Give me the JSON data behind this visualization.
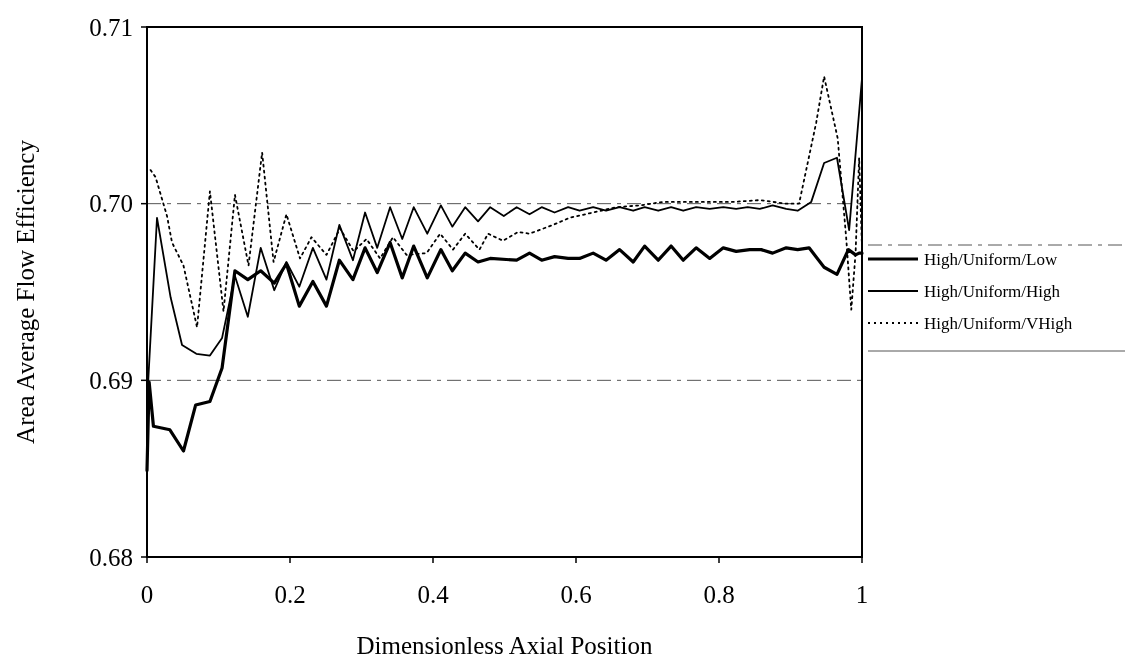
{
  "chart_data": {
    "type": "line",
    "xlabel": "Dimensionless Axial Position",
    "ylabel": "Area Average Flow Efficiency",
    "xlim": [
      0,
      1
    ],
    "ylim": [
      0.68,
      0.71
    ],
    "xticks": [
      0,
      0.2,
      0.4,
      0.6,
      0.8,
      1
    ],
    "yticks": [
      0.68,
      0.69,
      {
        "value": 0.7,
        "label": "0.70"
      },
      0.71
    ],
    "grid": "y",
    "legend": "right",
    "marker": "none",
    "series": [
      {
        "name": "High/Uniform/Low",
        "color": "#000000",
        "line_style": "solid",
        "x": [
          0,
          0.003,
          0.009,
          0.032,
          0.051,
          0.068,
          0.088,
          0.105,
          0.123,
          0.141,
          0.159,
          0.178,
          0.195,
          0.213,
          0.232,
          0.251,
          0.269,
          0.288,
          0.305,
          0.322,
          0.34,
          0.357,
          0.373,
          0.392,
          0.411,
          0.427,
          0.445,
          0.463,
          0.48,
          0.517,
          0.535,
          0.552,
          0.57,
          0.589,
          0.605,
          0.624,
          0.642,
          0.661,
          0.68,
          0.696,
          0.715,
          0.733,
          0.75,
          0.768,
          0.787,
          0.806,
          0.824,
          0.843,
          0.859,
          0.875,
          0.894,
          0.91,
          0.926,
          0.947,
          0.965,
          0.981,
          0.991,
          0.996,
          1
        ],
        "values": [
          0.6849,
          0.6899,
          0.6874,
          0.6872,
          0.686,
          0.6886,
          0.6888,
          0.6907,
          0.6962,
          0.6957,
          0.6962,
          0.6955,
          0.6966,
          0.6942,
          0.6956,
          0.6942,
          0.6968,
          0.6957,
          0.6975,
          0.6961,
          0.6978,
          0.6958,
          0.6976,
          0.6958,
          0.6974,
          0.6962,
          0.6972,
          0.6967,
          0.6969,
          0.6968,
          0.6972,
          0.6968,
          0.697,
          0.6969,
          0.6969,
          0.6972,
          0.6968,
          0.6974,
          0.6967,
          0.6976,
          0.6968,
          0.6976,
          0.6968,
          0.6975,
          0.6969,
          0.6975,
          0.6973,
          0.6974,
          0.6974,
          0.6972,
          0.6975,
          0.6974,
          0.6975,
          0.6964,
          0.696,
          0.6974,
          0.6971,
          0.6972,
          0.6972
        ]
      },
      {
        "name": "High/Uniform/High",
        "color": "#000000",
        "line_style": "solid",
        "x": [
          0,
          0.014,
          0.033,
          0.049,
          0.069,
          0.088,
          0.105,
          0.123,
          0.141,
          0.159,
          0.178,
          0.195,
          0.213,
          0.232,
          0.251,
          0.269,
          0.288,
          0.305,
          0.322,
          0.34,
          0.357,
          0.373,
          0.392,
          0.411,
          0.427,
          0.445,
          0.463,
          0.48,
          0.499,
          0.517,
          0.535,
          0.552,
          0.57,
          0.589,
          0.605,
          0.624,
          0.642,
          0.661,
          0.68,
          0.696,
          0.715,
          0.733,
          0.75,
          0.768,
          0.787,
          0.806,
          0.824,
          0.84,
          0.857,
          0.875,
          0.894,
          0.91,
          0.929,
          0.947,
          0.965,
          0.982,
          1
        ],
        "values": [
          0.6887,
          0.6992,
          0.6947,
          0.692,
          0.6915,
          0.6914,
          0.6924,
          0.6959,
          0.6936,
          0.6975,
          0.6951,
          0.6967,
          0.6953,
          0.6975,
          0.6957,
          0.6988,
          0.6968,
          0.6995,
          0.6975,
          0.6998,
          0.698,
          0.6998,
          0.6983,
          0.6999,
          0.6987,
          0.6998,
          0.699,
          0.6998,
          0.6993,
          0.6998,
          0.6994,
          0.6998,
          0.6995,
          0.6998,
          0.6996,
          0.6998,
          0.6996,
          0.6998,
          0.6996,
          0.6998,
          0.6996,
          0.6998,
          0.6996,
          0.6998,
          0.6997,
          0.6998,
          0.6997,
          0.6998,
          0.6997,
          0.6999,
          0.6997,
          0.6996,
          0.7001,
          0.7023,
          0.7026,
          0.6985,
          0.7071
        ]
      },
      {
        "name": "High/Uniform/VHigh",
        "color": "#000000",
        "line_style": "dotted",
        "x": [
          0.005,
          0.012,
          0.028,
          0.035,
          0.051,
          0.07,
          0.088,
          0.107,
          0.123,
          0.142,
          0.161,
          0.177,
          0.195,
          0.214,
          0.23,
          0.251,
          0.27,
          0.289,
          0.307,
          0.326,
          0.344,
          0.363,
          0.391,
          0.41,
          0.428,
          0.445,
          0.465,
          0.477,
          0.498,
          0.519,
          0.535,
          0.568,
          0.591,
          0.624,
          0.656,
          0.689,
          0.722,
          0.754,
          0.787,
          0.82,
          0.857,
          0.894,
          0.912,
          0.936,
          0.947,
          0.966,
          0.978,
          0.985,
          0.991,
          0.996,
          1
        ],
        "values": [
          0.7019,
          0.7015,
          0.6993,
          0.6978,
          0.6965,
          0.693,
          0.7007,
          0.6939,
          0.7005,
          0.6965,
          0.7029,
          0.6967,
          0.6994,
          0.6969,
          0.6981,
          0.6971,
          0.6986,
          0.6973,
          0.698,
          0.6969,
          0.6981,
          0.6971,
          0.6972,
          0.6983,
          0.6974,
          0.6983,
          0.6974,
          0.6983,
          0.6979,
          0.6984,
          0.6983,
          0.6988,
          0.6992,
          0.6995,
          0.6998,
          0.6999,
          0.7001,
          0.7001,
          0.7001,
          0.7001,
          0.7002,
          0.7,
          0.7,
          0.7046,
          0.7072,
          0.7037,
          0.698,
          0.694,
          0.6972,
          0.7026,
          0.6975
        ]
      }
    ]
  }
}
